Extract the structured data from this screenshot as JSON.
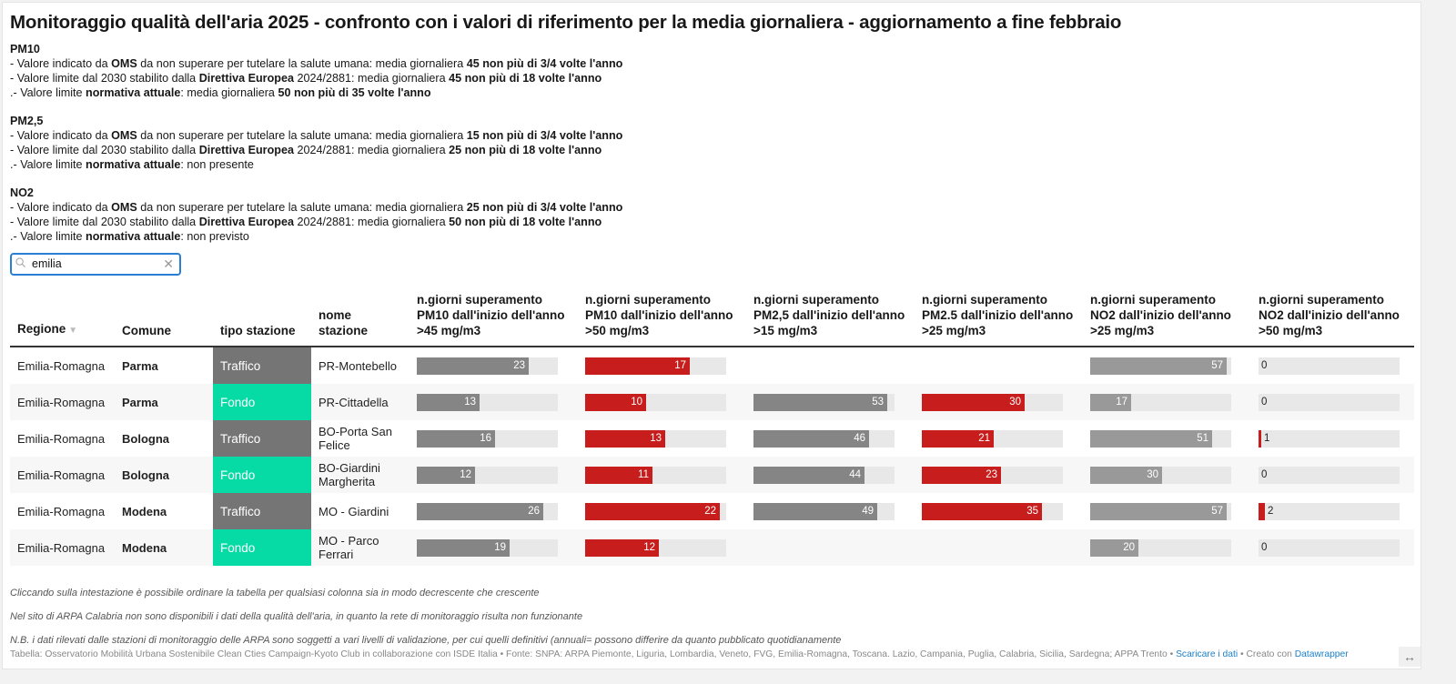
{
  "title": "Monitoraggio qualità dell'aria 2025 - confronto con i valori di riferimento per la media giornaliera - aggiornamento a fine febbraio",
  "intro": [
    {
      "heading": "PM10",
      "lines": [
        [
          {
            "t": "- Valore indicato da "
          },
          {
            "t": "OMS",
            "b": true
          },
          {
            "t": " da non superare per tutelare la salute umana: media giornaliera "
          },
          {
            "t": "45 non più di 3/4 volte l'anno",
            "b": true
          }
        ],
        [
          {
            "t": "- Valore limite dal 2030 stabilito dalla "
          },
          {
            "t": "Direttiva Europea",
            "b": true
          },
          {
            "t": " 2024/2881: media giornaliera "
          },
          {
            "t": "45 non più di 18 volte l'anno",
            "b": true
          }
        ],
        [
          {
            "t": ".- Valore limite "
          },
          {
            "t": "normativa attuale",
            "b": true
          },
          {
            "t": ": media giornaliera "
          },
          {
            "t": "50 non più di 35 volte l'anno",
            "b": true
          }
        ]
      ]
    },
    {
      "heading": "PM2,5",
      "lines": [
        [
          {
            "t": "- Valore indicato da "
          },
          {
            "t": "OMS",
            "b": true
          },
          {
            "t": " da non superare per tutelare la salute umana: media giornaliera "
          },
          {
            "t": "15 non più di 3/4 volte l'anno",
            "b": true
          }
        ],
        [
          {
            "t": "- Valore limite dal 2030 stabilito dalla "
          },
          {
            "t": "Direttiva Europea",
            "b": true
          },
          {
            "t": " 2024/2881: media giornaliera "
          },
          {
            "t": "25 non più di 18 volte l'anno",
            "b": true
          }
        ],
        [
          {
            "t": ".- Valore limite "
          },
          {
            "t": "normativa attuale",
            "b": true
          },
          {
            "t": ": non presente"
          }
        ]
      ]
    },
    {
      "heading": "NO2",
      "lines": [
        [
          {
            "t": "- Valore indicato da "
          },
          {
            "t": "OMS",
            "b": true
          },
          {
            "t": " da non superare per tutelare la salute umana: media giornaliera "
          },
          {
            "t": "25 non più di 3/4 volte l'anno",
            "b": true
          }
        ],
        [
          {
            "t": "- Valore limite dal 2030 stabilito dalla "
          },
          {
            "t": "Direttiva Europea",
            "b": true
          },
          {
            "t": " 2024/2881: media giornaliera "
          },
          {
            "t": "50 non più di 18 volte l'anno",
            "b": true
          }
        ],
        [
          {
            "t": ".- Valore limite "
          },
          {
            "t": "normativa attuale",
            "b": true
          },
          {
            "t": ": non previsto"
          }
        ]
      ]
    }
  ],
  "search": {
    "value": "emilia",
    "placeholder": "",
    "icon": "search-icon",
    "clear_icon": "close-icon"
  },
  "table": {
    "columns": [
      {
        "label": "Regione",
        "sort_icon": "▼"
      },
      {
        "label": "Comune"
      },
      {
        "label": "tipo stazione"
      },
      {
        "label": "nome stazione"
      },
      {
        "label": "n.giorni superamento PM10 dall'inizio dell'anno >45 mg/m3",
        "color": "#858585",
        "max": 29
      },
      {
        "label": "n.giorni superamento PM10 dall'inizio dell'anno >50 mg/m3",
        "color": "#c71e1d",
        "max": 23
      },
      {
        "label": "n.giorni superamento PM2,5 dall'inizio dell'anno >15 mg/m3",
        "color": "#858585",
        "max": 56
      },
      {
        "label": "n.giorni superamento PM2.5 dall'inizio dell'anno >25 mg/m3",
        "color": "#c71e1d",
        "max": 41
      },
      {
        "label": "n.giorni superamento NO2 dall'inizio dell'anno >25 mg/m3",
        "color": "#999999",
        "max": 59
      },
      {
        "label": "n.giorni superamento NO2 dall'inizio dell'anno >50 mg/m3",
        "color": "#c71e1d",
        "max": 45
      }
    ],
    "tipo_colors": {
      "Traffico": "#757575",
      "Fondo": "#07dba5"
    },
    "rows": [
      {
        "regione": "Emilia-Romagna",
        "comune": "Parma",
        "tipo": "Traffico",
        "stazione": "PR-Montebello",
        "values": [
          23,
          17,
          null,
          null,
          57,
          0
        ]
      },
      {
        "regione": "Emilia-Romagna",
        "comune": "Parma",
        "tipo": "Fondo",
        "stazione": "PR-Cittadella",
        "values": [
          13,
          10,
          53,
          30,
          17,
          0
        ]
      },
      {
        "regione": "Emilia-Romagna",
        "comune": "Bologna",
        "tipo": "Traffico",
        "stazione": "BO-Porta San Felice",
        "values": [
          16,
          13,
          46,
          21,
          51,
          1
        ]
      },
      {
        "regione": "Emilia-Romagna",
        "comune": "Bologna",
        "tipo": "Fondo",
        "stazione": "BO-Giardini Margherita",
        "values": [
          12,
          11,
          44,
          23,
          30,
          0
        ]
      },
      {
        "regione": "Emilia-Romagna",
        "comune": "Modena",
        "tipo": "Traffico",
        "stazione": "MO - Giardini",
        "values": [
          26,
          22,
          49,
          35,
          57,
          2
        ]
      },
      {
        "regione": "Emilia-Romagna",
        "comune": "Modena",
        "tipo": "Fondo",
        "stazione": "MO - Parco Ferrari",
        "values": [
          19,
          12,
          null,
          null,
          20,
          0
        ]
      }
    ]
  },
  "notes": [
    "Cliccando sulla intestazione è possibile ordinare la tabella per qualsiasi colonna sia in modo decrescente che crescente",
    "Nel sito di ARPA Calabria non sono disponibili i dati della qualità dell'aria, in quanto la rete di monitoraggio risulta non funzionante",
    "N.B. i dati rilevati dalle stazioni di monitoraggio delle ARPA sono soggetti a vari livelli di validazione, per cui quelli definitivi (annuali= possono differire da quanto pubblicato quotidianamente"
  ],
  "source": {
    "text": "Tabella: Osservatorio Mobilità Urbana Sostenibile Clean Cties Campaign-Kyoto Club in collaborazione con ISDE Italia • Fonte: SNPA: ARPA Piemonte, Liguria, Lombardia, Veneto, FVG, Emilia-Romagna, Toscana. Lazio, Campania, Puglia, Calabria, Sicilia, Sardegna; APPA Trento • ",
    "download_link": "Scaricare i dati",
    "sep": " • Creato con ",
    "made_with_link": "Datawrapper"
  },
  "resize_icon": "↔"
}
